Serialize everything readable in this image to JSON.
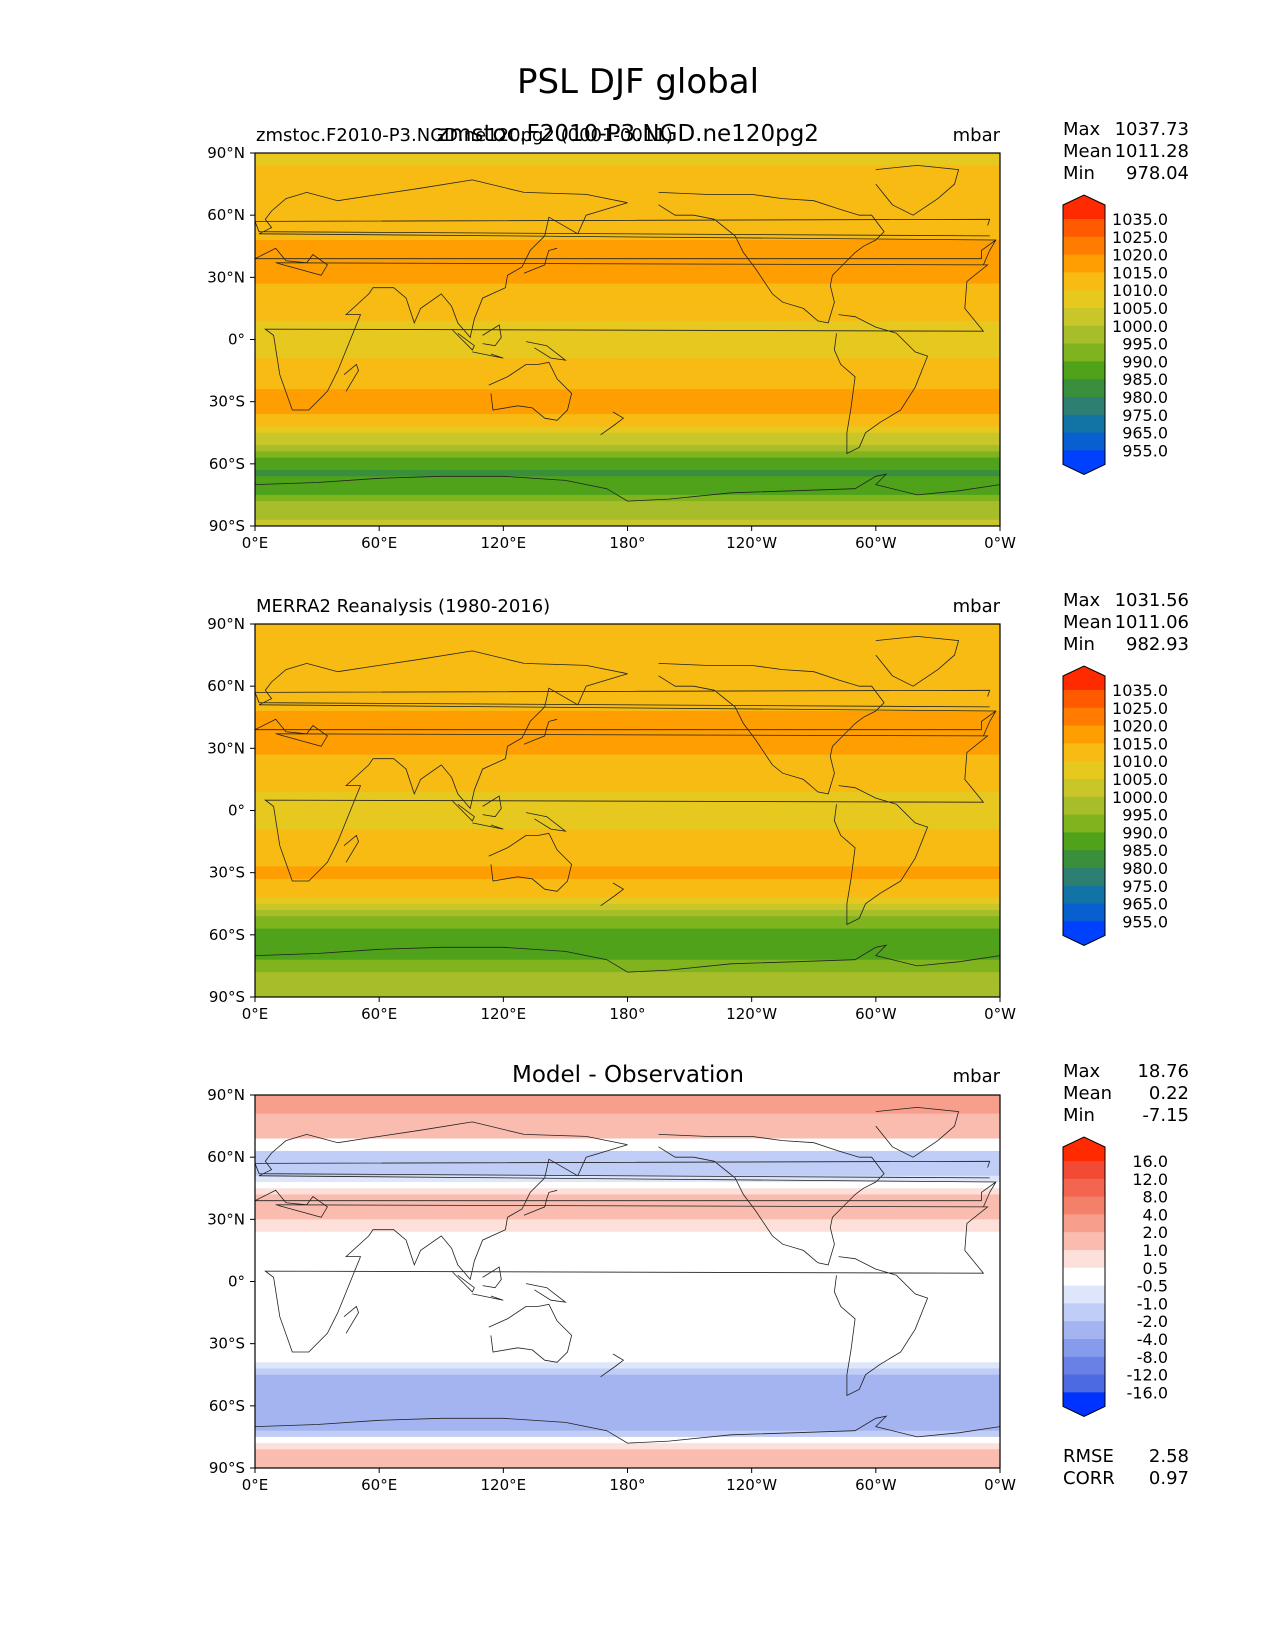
{
  "figure_title": "PSL DJF global",
  "units": "mbar",
  "colorbar_abs": [
    "1035.0",
    "1025.0",
    "1020.0",
    "1015.0",
    "1010.0",
    "1005.0",
    "1000.0",
    "995.0",
    "990.0",
    "985.0",
    "980.0",
    "975.0",
    "965.0",
    "955.0"
  ],
  "colorbar_diff": [
    "16.0",
    "12.0",
    "8.0",
    "4.0",
    "2.0",
    "1.0",
    "0.5",
    "-0.5",
    "-1.0",
    "-2.0",
    "-4.0",
    "-8.0",
    "-12.0",
    "-16.0"
  ],
  "colors_abs": [
    "#ff2a00",
    "#ff5a00",
    "#ff7c00",
    "#ff9e00",
    "#f7bb14",
    "#e6c81f",
    "#c9c629",
    "#a7bd2a",
    "#7fb41e",
    "#4fa21a",
    "#3a8f3c",
    "#2d7f72",
    "#1274a4",
    "#075fd0",
    "#0040ff"
  ],
  "colors_diff": [
    "#ff2a00",
    "#f34a36",
    "#f46550",
    "#f5806a",
    "#f79e8c",
    "#fbbcb0",
    "#fde0da",
    "#ffffff",
    "#dde6fb",
    "#c0cdf6",
    "#a3b4f1",
    "#869bec",
    "#6981e6",
    "#4c6ae2",
    "#0033ff"
  ],
  "chart_data": [
    {
      "type": "heatmap",
      "title_left": "zmstoc.F2010-P3.NGD.ne120pg2 (0001-0011)",
      "title_center": "zmstoc.F2010-P3.NGD.ne120pg2",
      "units": "mbar",
      "stats": {
        "Max": "1037.73",
        "Mean": "1011.28",
        "Min": "978.04"
      },
      "x_ticks": [
        "0°E",
        "60°E",
        "120°E",
        "180°",
        "120°W",
        "60°W",
        "0°W"
      ],
      "y_ticks": [
        "90°N",
        "60°N",
        "30°N",
        "0°",
        "30°S",
        "60°S",
        "90°S"
      ],
      "zonal_profile": {
        "lat": [
          90,
          80,
          70,
          60,
          50,
          40,
          30,
          20,
          10,
          0,
          -10,
          -20,
          -30,
          -40,
          -50,
          -55,
          -60,
          -65,
          -70,
          -75,
          -80,
          -90
        ],
        "value": [
          1006,
          1013,
          1015,
          1012,
          1014,
          1019,
          1016,
          1013,
          1010,
          1009,
          1010,
          1014,
          1017,
          1014,
          1000,
          992,
          986,
          984,
          986,
          990,
          998,
          1001
        ]
      }
    },
    {
      "type": "heatmap",
      "title_left": "MERRA2 Reanalysis (1980-2016)",
      "title_center": "",
      "units": "mbar",
      "stats": {
        "Max": "1031.56",
        "Mean": "1011.06",
        "Min": "982.93"
      },
      "x_ticks": [
        "0°E",
        "60°E",
        "120°E",
        "180°",
        "120°W",
        "60°W",
        "0°W"
      ],
      "y_ticks": [
        "90°N",
        "60°N",
        "30°N",
        "0°",
        "30°S",
        "60°S",
        "90°S"
      ],
      "zonal_profile": {
        "lat": [
          90,
          80,
          70,
          60,
          50,
          40,
          30,
          20,
          10,
          0,
          -10,
          -20,
          -30,
          -40,
          -50,
          -55,
          -60,
          -65,
          -70,
          -75,
          -80,
          -90
        ],
        "value": [
          1012,
          1015,
          1014,
          1012,
          1014,
          1018,
          1016,
          1013,
          1010,
          1009,
          1010,
          1013,
          1016,
          1012,
          998,
          991,
          987,
          986,
          989,
          992,
          996,
          998
        ]
      }
    },
    {
      "type": "heatmap",
      "title_left": "",
      "title_center": "Model - Observation",
      "units": "mbar",
      "stats": {
        "Max": "18.76",
        "Mean": "0.22",
        "Min": "-7.15"
      },
      "extra_stats": {
        "RMSE": "2.58",
        "CORR": "0.97"
      },
      "x_ticks": [
        "0°E",
        "60°E",
        "120°E",
        "180°",
        "120°W",
        "60°W",
        "0°W"
      ],
      "y_ticks": [
        "90°N",
        "60°N",
        "30°N",
        "0°",
        "30°S",
        "60°S",
        "90°S"
      ],
      "zonal_profile": {
        "lat": [
          90,
          80,
          70,
          60,
          50,
          40,
          30,
          20,
          10,
          0,
          -10,
          -20,
          -30,
          -40,
          -50,
          -55,
          -60,
          -65,
          -70,
          -75,
          -80,
          -90
        ],
        "value": [
          4,
          2,
          1,
          -1.5,
          -1,
          1.5,
          1,
          0.3,
          0,
          0,
          0,
          0.3,
          0.5,
          -0.5,
          -3,
          -4,
          -3,
          -2.5,
          -3,
          -1,
          1,
          1.5
        ]
      }
    }
  ]
}
